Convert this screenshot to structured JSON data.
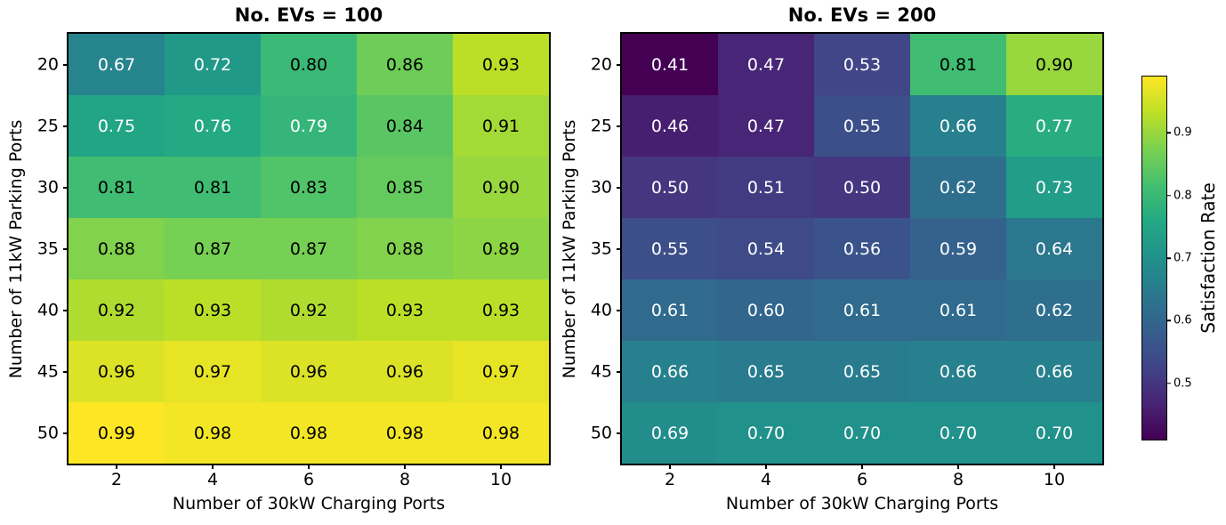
{
  "chart_data": {
    "type": "heatmap",
    "xlabel": "Number of 30kW Charging Ports",
    "ylabel": "Number of 11kW Parking Ports",
    "x_ticks": [
      2,
      4,
      6,
      8,
      10
    ],
    "y_ticks": [
      20,
      25,
      30,
      35,
      40,
      45,
      50
    ],
    "panels": [
      {
        "title": "No. EVs = 100",
        "values": [
          [
            0.67,
            0.72,
            0.8,
            0.86,
            0.93
          ],
          [
            0.75,
            0.76,
            0.79,
            0.84,
            0.91
          ],
          [
            0.81,
            0.81,
            0.83,
            0.85,
            0.9
          ],
          [
            0.88,
            0.87,
            0.87,
            0.88,
            0.89
          ],
          [
            0.92,
            0.93,
            0.92,
            0.93,
            0.93
          ],
          [
            0.96,
            0.97,
            0.96,
            0.96,
            0.97
          ],
          [
            0.99,
            0.98,
            0.98,
            0.98,
            0.98
          ]
        ]
      },
      {
        "title": "No. EVs = 200",
        "values": [
          [
            0.41,
            0.47,
            0.53,
            0.81,
            0.9
          ],
          [
            0.46,
            0.47,
            0.55,
            0.66,
            0.77
          ],
          [
            0.5,
            0.51,
            0.5,
            0.62,
            0.73
          ],
          [
            0.55,
            0.54,
            0.56,
            0.59,
            0.64
          ],
          [
            0.61,
            0.6,
            0.61,
            0.61,
            0.62
          ],
          [
            0.66,
            0.65,
            0.65,
            0.66,
            0.66
          ],
          [
            0.69,
            0.7,
            0.7,
            0.7,
            0.7
          ]
        ]
      }
    ],
    "colorbar": {
      "label": "Satisfaction Rate",
      "ticks": [
        0.5,
        0.6,
        0.7,
        0.8,
        0.9
      ],
      "vmin": 0.41,
      "vmax": 0.99
    },
    "colormap": {
      "name": "viridis",
      "stops": [
        "#440154",
        "#482475",
        "#414487",
        "#355f8d",
        "#2a788e",
        "#21918c",
        "#22a884",
        "#44bf70",
        "#7ad151",
        "#bddf26",
        "#fde725"
      ]
    },
    "annotation_colors": {
      "dark_text": "#000000",
      "light_text": "#ffffff"
    },
    "grid": false,
    "value_format": "2dp"
  }
}
